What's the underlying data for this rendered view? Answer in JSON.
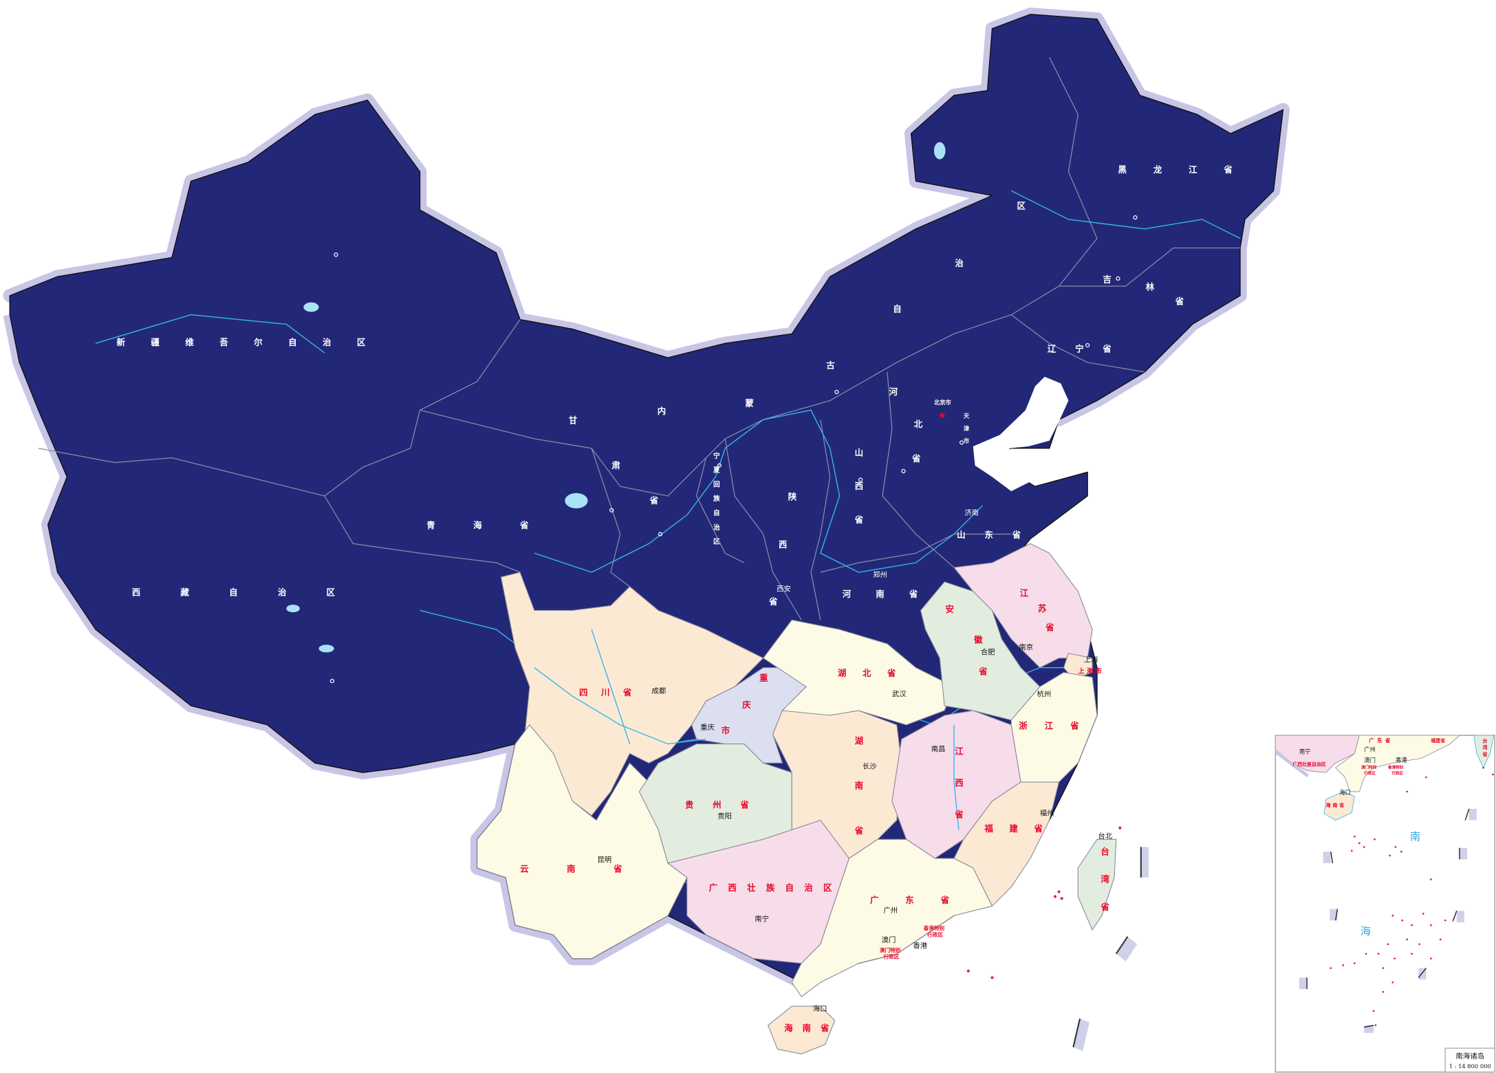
{
  "colors": {
    "north_fill": "#222877",
    "halo": "#c8c5e6",
    "peach": "#fbe9d4",
    "cream": "#fdfbe6",
    "pink": "#f7dcea",
    "green": "#e2ede0",
    "lavender": "#dcdff0",
    "label_red": "#e8082a",
    "river": "#36b7e8",
    "island_magenta": "#e0197d"
  },
  "provinces_north": {
    "xinjiang": "新疆维吾尔自治区",
    "xizang": "西藏自治区",
    "qinghai": "青海省",
    "gansu": [
      "甘",
      "肃",
      "省"
    ],
    "neimenggu": [
      "内",
      "蒙",
      "古",
      "自",
      "治",
      "区"
    ],
    "heilongjiang": "黑龙江省",
    "jilin": [
      "吉",
      "林",
      "省"
    ],
    "liaoning": "辽宁省",
    "beijing": "北京市",
    "tianjin": "天津市",
    "hebei": [
      "河",
      "北",
      "省"
    ],
    "shanxi": "山西省",
    "shaanxi": [
      "陕",
      "西",
      "省"
    ],
    "ningxia": "宁夏回族自治区",
    "henan": "河南省",
    "shandong": "山东省"
  },
  "provinces_south": {
    "sichuan": "四川省",
    "chongqing": [
      "重",
      "庆",
      "市"
    ],
    "hubei": "湖北省",
    "hunan": "湖南省",
    "anhui": [
      "安",
      "徽",
      "省"
    ],
    "jiangsu": [
      "江",
      "苏",
      "省"
    ],
    "shanghai": "上海市",
    "zhejiang": "浙江省",
    "jiangxi": "江西省",
    "fujian": "福建省",
    "guizhou": "贵州省",
    "yunnan": "云南省",
    "guangxi": "广西壮族自治区",
    "guangdong": "广东省",
    "hainan": "海南省",
    "taiwan": "台湾省",
    "hongkong": [
      "香港特别",
      "行政区"
    ],
    "macao": [
      "澳门特别",
      "行政区"
    ]
  },
  "cities": {
    "chengdu": "成都",
    "chongqing": "重庆",
    "guiyang": "贵阳",
    "kunming": "昆明",
    "nanning": "南宁",
    "guangzhou": "广州",
    "macao": "澳门",
    "hongkong": "香港",
    "haikou": "海口",
    "changsha": "长沙",
    "wuhan": "武汉",
    "nanchang": "南昌",
    "fuzhou": "福州",
    "taibei": "台北",
    "hangzhou": "杭州",
    "shanghai": "上海",
    "nanjing": "南京",
    "hefei": "合肥",
    "zhengzhou": "郑州",
    "xian": "西安",
    "jinan": "济南"
  },
  "inset": {
    "sea_chars": [
      "南",
      "海"
    ],
    "title": "南海诸岛",
    "scale": "1 : 14 800 000"
  }
}
